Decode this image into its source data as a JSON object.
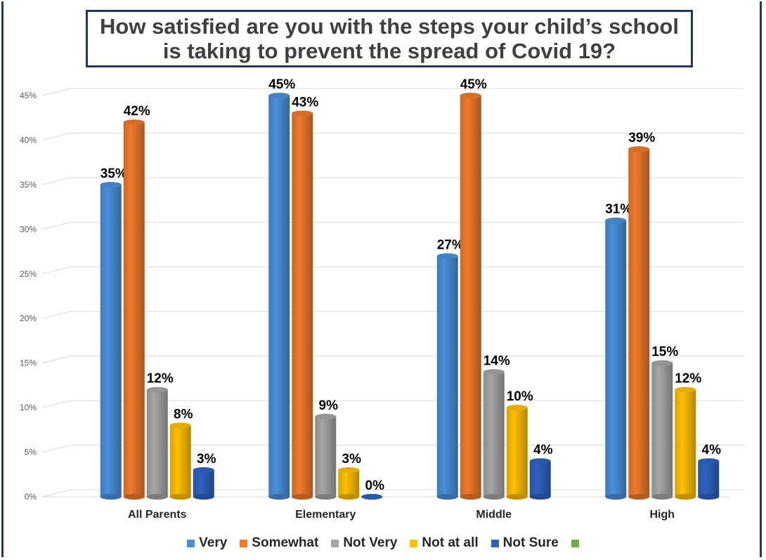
{
  "chart_data": {
    "type": "bar",
    "title_lines": [
      "How satisfied are you with the steps your child’s school",
      "is taking to prevent the spread of Covid 19?"
    ],
    "categories": [
      "All Parents",
      "Elementary",
      "Middle",
      "High"
    ],
    "series": [
      {
        "name": "Very",
        "values": [
          35,
          45,
          27,
          31
        ],
        "labels": [
          "35%",
          "45%",
          "27%",
          "31%"
        ],
        "color": "#4a90d9"
      },
      {
        "name": "Somewhat",
        "values": [
          42,
          43,
          45,
          39
        ],
        "labels": [
          "42%",
          "43%",
          "45%",
          "39%"
        ],
        "color": "#f07a2a"
      },
      {
        "name": "Not Very",
        "values": [
          12,
          9,
          14,
          15
        ],
        "labels": [
          "12%",
          "9%",
          "14%",
          "15%"
        ],
        "color": "#a6a6a6"
      },
      {
        "name": "Not at all",
        "values": [
          8,
          3,
          10,
          12
        ],
        "labels": [
          "8%",
          "3%",
          "10%",
          "12%"
        ],
        "color": "#ffc000"
      },
      {
        "name": "Not Sure",
        "values": [
          3,
          0,
          4,
          4
        ],
        "labels": [
          "3%",
          "0%",
          "4%",
          "4%"
        ],
        "color": "#2f62c0"
      }
    ],
    "extra_legend_swatch_color": "#70ad47",
    "ylim": [
      0,
      45
    ],
    "yticks": [
      "0%",
      "5%",
      "10%",
      "15%",
      "20%",
      "25%",
      "30%",
      "35%",
      "40%",
      "45%"
    ],
    "grid": true,
    "legend_position": "bottom"
  }
}
